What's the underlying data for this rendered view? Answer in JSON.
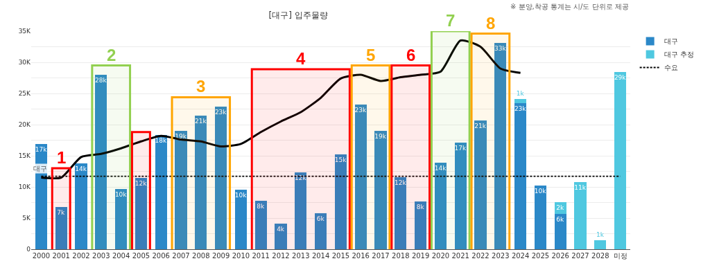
{
  "chart_data": {
    "type": "bar",
    "title": "[대구] 입주물량",
    "stacked": true,
    "categories": [
      "2000",
      "2001",
      "2002",
      "2003",
      "2004",
      "2005",
      "2006",
      "2007",
      "2008",
      "2009",
      "2010",
      "2011",
      "2012",
      "2013",
      "2014",
      "2015",
      "2016",
      "2017",
      "2018",
      "2019",
      "2020",
      "2021",
      "2022",
      "2023",
      "2024",
      "2025",
      "2026",
      "2027",
      "2028",
      "미정"
    ],
    "series": [
      {
        "name": "대구",
        "color": "#2b88c8",
        "values": [
          16.9,
          6.8,
          13.8,
          28,
          9.7,
          11.5,
          18.3,
          19,
          21.4,
          22.9,
          9.6,
          7.8,
          4.1,
          12.3,
          5.8,
          15.2,
          23.2,
          19,
          11.6,
          7.7,
          13.9,
          17.1,
          20.7,
          33.1,
          23.5,
          10.2,
          5.7,
          null,
          null,
          null
        ],
        "value_labels": [
          "17k",
          "7k",
          "14k",
          "28k",
          "10k",
          "12k",
          "18k",
          "19k",
          "21k",
          "23k",
          "10k",
          "8k",
          "4k",
          "12k",
          "6k",
          "15k",
          "23k",
          "19k",
          "12k",
          "8k",
          "14k",
          "17k",
          "21k",
          "33k",
          "23k",
          "10k",
          "6k",
          null,
          null,
          null
        ]
      },
      {
        "name": "대구 추정",
        "color": "#4fc8e0",
        "values": [
          null,
          null,
          null,
          null,
          null,
          null,
          null,
          null,
          null,
          null,
          null,
          null,
          null,
          null,
          null,
          null,
          null,
          null,
          null,
          null,
          null,
          null,
          null,
          null,
          0.6,
          null,
          1.9,
          10.8,
          1.4,
          28.5
        ],
        "value_labels": [
          null,
          null,
          null,
          null,
          null,
          null,
          null,
          null,
          null,
          null,
          null,
          null,
          null,
          null,
          null,
          null,
          null,
          null,
          null,
          null,
          null,
          null,
          null,
          null,
          "1k",
          null,
          "2k",
          "11k",
          "1k",
          "29k"
        ]
      },
      {
        "type": "line",
        "color": "#000000",
        "line_style": "solid",
        "values": [
          11.5,
          11.5,
          14.8,
          15.3,
          16.2,
          17.3,
          18.2,
          17.6,
          17.3,
          16.5,
          16.9,
          18.8,
          20.5,
          22,
          24.3,
          27.4,
          28,
          27,
          27.6,
          28,
          28.5,
          33.5,
          32.5,
          29,
          28.3,
          null,
          null,
          null,
          null,
          null
        ]
      },
      {
        "type": "line",
        "name": "수요",
        "color": "#000000",
        "line_style": "dotted",
        "values": [
          11.7,
          11.7,
          11.7,
          11.7,
          11.7,
          11.7,
          11.7,
          11.7,
          11.7,
          11.7,
          11.7,
          11.7,
          11.7,
          11.7,
          11.7,
          11.7,
          11.7,
          11.7,
          11.7,
          11.7,
          11.7,
          11.7,
          11.7,
          11.7,
          11.7,
          11.7,
          11.7,
          11.7,
          11.7,
          11.7
        ]
      }
    ],
    "ylim": [
      0,
      35
    ],
    "yticks": [
      {
        "value": 0,
        "label": "0"
      },
      {
        "value": 2.5,
        "label": null
      },
      {
        "value": 5,
        "label": "5K"
      },
      {
        "value": 7.5,
        "label": null
      },
      {
        "value": 10,
        "label": "10K"
      },
      {
        "value": 12.5,
        "label": null
      },
      {
        "value": 15,
        "label": "15K"
      },
      {
        "value": 17.5,
        "label": null
      },
      {
        "value": 20,
        "label": "20K"
      },
      {
        "value": 22.5,
        "label": null
      },
      {
        "value": 25,
        "label": "25K"
      },
      {
        "value": 27.5,
        "label": null
      },
      {
        "value": 30,
        "label": "30K"
      },
      {
        "value": 32.5,
        "label": null
      },
      {
        "value": 35,
        "label": "35K"
      }
    ],
    "grid": "y",
    "legend": "top right",
    "marker": "none",
    "bands": [
      {
        "axis": "x",
        "from": "2001",
        "to": "2001",
        "label": "1",
        "color": "#ff0000"
      },
      {
        "axis": "x",
        "from": "2003",
        "to": "2004",
        "label": "2",
        "color": "#92d050"
      },
      {
        "axis": "x",
        "from": "2005",
        "to": "2005",
        "color": "#ff0000"
      },
      {
        "axis": "x",
        "from": "2007",
        "to": "2009",
        "label": "3",
        "color": "#ffa500"
      },
      {
        "axis": "x",
        "from": "2011",
        "to": "2015",
        "label": "4",
        "color": "#ff0000"
      },
      {
        "axis": "x",
        "from": "2016",
        "to": "2017",
        "label": "5",
        "color": "#ffa500"
      },
      {
        "axis": "x",
        "from": "2018",
        "to": "2019",
        "label": "6",
        "color": "#ff0000"
      },
      {
        "axis": "x",
        "from": "2020",
        "to": "2021",
        "label": "7",
        "color": "#92d050"
      },
      {
        "axis": "x",
        "from": "2022",
        "to": "2023",
        "label": "8",
        "color": "#ffa500"
      }
    ],
    "annotations": [
      "※ 분양,착공 통계는 시/도 단위로 제공",
      "대구"
    ]
  }
}
